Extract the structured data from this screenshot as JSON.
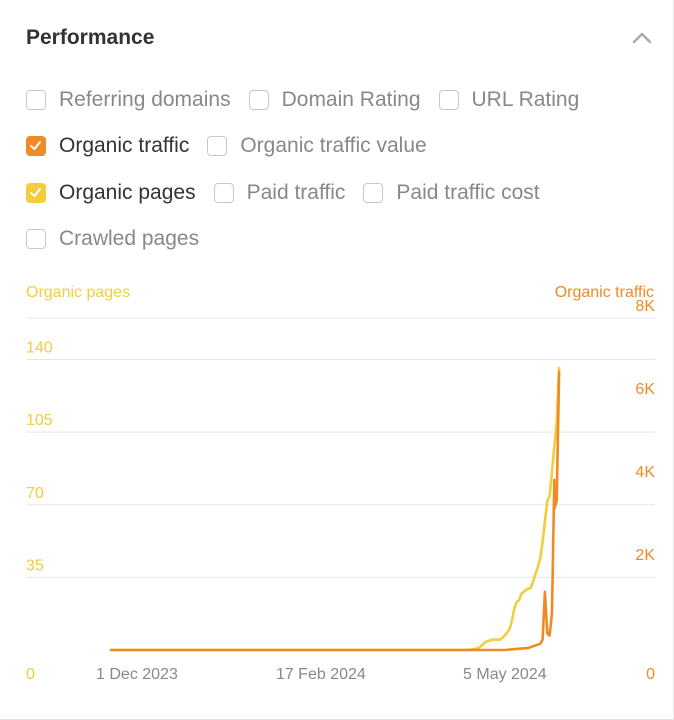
{
  "panel": {
    "title": "Performance",
    "collapse_icon": "chevron-up-icon"
  },
  "metrics": [
    [
      {
        "id": "referring-domains",
        "label": "Referring domains",
        "checked": false
      },
      {
        "id": "domain-rating",
        "label": "Domain Rating",
        "checked": false
      },
      {
        "id": "url-rating",
        "label": "URL Rating",
        "checked": false
      }
    ],
    [
      {
        "id": "organic-traffic",
        "label": "Organic traffic",
        "checked": true,
        "color": "#f08a24"
      },
      {
        "id": "organic-traffic-value",
        "label": "Organic traffic value",
        "checked": false
      }
    ],
    [
      {
        "id": "organic-pages",
        "label": "Organic pages",
        "checked": true,
        "color": "#f3cd3c"
      },
      {
        "id": "paid-traffic",
        "label": "Paid traffic",
        "checked": false
      },
      {
        "id": "paid-traffic-cost",
        "label": "Paid traffic cost",
        "checked": false
      }
    ],
    [
      {
        "id": "crawled-pages",
        "label": "Crawled pages",
        "checked": false
      }
    ]
  ],
  "chart_data": {
    "type": "line",
    "title": "",
    "y_left_label": "Organic pages",
    "y_right_label": "Organic traffic",
    "x_range": [
      "2023-11-20",
      "2024-06-08"
    ],
    "x_ticks": [
      {
        "date": "2023-12-01",
        "label": "1 Dec 2023"
      },
      {
        "date": "2024-02-17",
        "label": "17 Feb 2024"
      },
      {
        "date": "2024-05-05",
        "label": "5 May 2024"
      }
    ],
    "y_left": {
      "min": 0,
      "max": 160,
      "ticks": [
        0,
        35,
        70,
        105,
        140
      ],
      "tick_labels": [
        "0",
        "35",
        "70",
        "105",
        "140"
      ]
    },
    "y_right": {
      "min": 0,
      "max": 8000,
      "ticks": [
        0,
        2000,
        4000,
        6000,
        8000
      ],
      "tick_labels": [
        "0",
        "2K",
        "4K",
        "6K",
        "8K"
      ]
    },
    "grid": true,
    "series": [
      {
        "name": "Organic pages",
        "axis": "left",
        "color": "#f3cd3c",
        "points": [
          [
            "2023-11-20",
            0
          ],
          [
            "2024-04-20",
            0
          ],
          [
            "2024-04-24",
            1
          ],
          [
            "2024-04-27",
            4
          ],
          [
            "2024-04-30",
            5
          ],
          [
            "2024-05-03",
            5
          ],
          [
            "2024-05-05",
            7
          ],
          [
            "2024-05-07",
            10
          ],
          [
            "2024-05-08",
            14
          ],
          [
            "2024-05-09",
            20
          ],
          [
            "2024-05-10",
            23
          ],
          [
            "2024-05-11",
            24
          ],
          [
            "2024-05-12",
            27
          ],
          [
            "2024-05-14",
            29
          ],
          [
            "2024-05-16",
            30
          ],
          [
            "2024-05-17",
            33
          ],
          [
            "2024-05-19",
            40
          ],
          [
            "2024-05-20",
            44
          ],
          [
            "2024-05-21",
            52
          ],
          [
            "2024-05-22",
            62
          ],
          [
            "2024-05-23",
            72
          ],
          [
            "2024-05-24",
            74
          ],
          [
            "2024-05-25",
            86
          ],
          [
            "2024-05-26",
            98
          ],
          [
            "2024-05-27",
            110
          ],
          [
            "2024-05-28",
            136
          ]
        ]
      },
      {
        "name": "Organic traffic",
        "axis": "right",
        "color": "#f08a24",
        "points": [
          [
            "2023-11-20",
            0
          ],
          [
            "2024-05-05",
            0
          ],
          [
            "2024-05-15",
            50
          ],
          [
            "2024-05-20",
            150
          ],
          [
            "2024-05-21",
            250
          ],
          [
            "2024-05-22",
            1400
          ],
          [
            "2024-05-23",
            400
          ],
          [
            "2024-05-24",
            350
          ],
          [
            "2024-05-25",
            900
          ],
          [
            "2024-05-26",
            4100
          ],
          [
            "2024-05-26",
            3400
          ],
          [
            "2024-05-27",
            3600
          ],
          [
            "2024-05-28",
            6700
          ]
        ]
      }
    ]
  }
}
